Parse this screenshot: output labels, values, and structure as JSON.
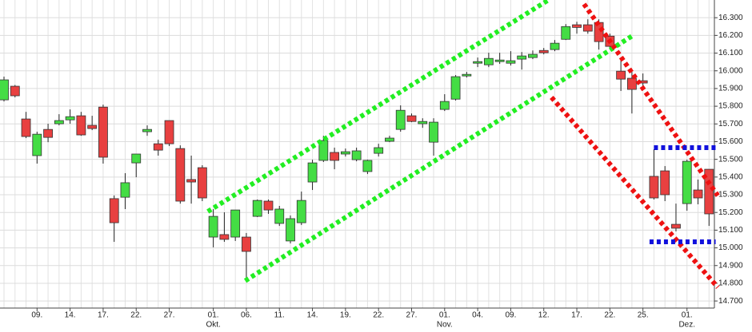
{
  "chart_data": {
    "type": "candlestick",
    "categories": [
      null,
      null,
      null,
      "09.",
      null,
      null,
      "14.",
      null,
      null,
      "17.",
      null,
      null,
      "22.",
      null,
      null,
      "27.",
      null,
      null,
      null,
      "01.",
      null,
      null,
      "06.",
      null,
      null,
      "11.",
      null,
      null,
      "14.",
      null,
      null,
      "19.",
      null,
      null,
      "22.",
      null,
      null,
      "27.",
      null,
      null,
      "01.",
      null,
      null,
      "04.",
      null,
      null,
      "09.",
      null,
      null,
      "12.",
      null,
      null,
      "17.",
      null,
      null,
      "22.",
      null,
      null,
      "25.",
      null,
      null,
      null,
      "01.",
      null,
      null
    ],
    "months": [
      null,
      null,
      null,
      null,
      null,
      null,
      null,
      null,
      null,
      null,
      null,
      null,
      null,
      null,
      null,
      null,
      null,
      null,
      null,
      "Okt.",
      null,
      null,
      null,
      null,
      null,
      null,
      null,
      null,
      null,
      null,
      null,
      null,
      null,
      null,
      null,
      null,
      null,
      null,
      null,
      null,
      "Nov.",
      null,
      null,
      null,
      null,
      null,
      null,
      null,
      null,
      null,
      null,
      null,
      null,
      null,
      null,
      null,
      null,
      null,
      null,
      null,
      null,
      null,
      "Dez.",
      null,
      null
    ],
    "open": [
      15.836,
      15.913,
      15.728,
      15.521,
      15.669,
      15.701,
      15.723,
      15.746,
      15.692,
      15.795,
      15.278,
      15.286,
      15.48,
      15.656,
      15.588,
      15.719,
      15.561,
      15.386,
      15.453,
      15.061,
      15.075,
      15.061,
      15.061,
      15.178,
      15.264,
      15.138,
      15.039,
      15.142,
      15.372,
      15.494,
      15.539,
      15.53,
      15.498,
      15.431,
      15.534,
      15.602,
      15.669,
      15.746,
      15.701,
      15.597,
      15.782,
      15.84,
      15.971,
      16.043,
      16.034,
      16.052,
      16.043,
      16.066,
      16.075,
      16.115,
      16.12,
      16.178,
      16.26,
      16.26,
      16.273,
      16.196,
      15.998,
      15.958,
      15.944,
      15.404,
      15.435,
      15.133,
      15.25,
      15.327,
      15.444
    ],
    "high": [
      15.967,
      15.92,
      15.768,
      15.656,
      15.701,
      15.755,
      15.782,
      15.768,
      15.746,
      15.809,
      15.296,
      15.422,
      15.53,
      15.692,
      15.611,
      15.719,
      15.579,
      15.521,
      15.467,
      15.219,
      15.201,
      15.214,
      15.084,
      15.273,
      15.273,
      15.237,
      15.183,
      15.318,
      15.498,
      15.633,
      15.566,
      15.561,
      15.566,
      15.498,
      15.588,
      15.633,
      15.805,
      15.759,
      15.732,
      15.732,
      15.868,
      15.976,
      15.994,
      16.075,
      16.102,
      16.102,
      16.111,
      16.106,
      16.115,
      16.129,
      16.174,
      16.264,
      16.277,
      16.291,
      16.291,
      16.21,
      16.066,
      15.994,
      15.985,
      15.557,
      15.462,
      15.25,
      15.498,
      15.386,
      15.444
    ],
    "low": [
      15.827,
      15.85,
      15.62,
      15.476,
      15.597,
      15.692,
      15.701,
      15.633,
      15.665,
      15.476,
      15.034,
      15.219,
      15.399,
      15.633,
      15.521,
      15.575,
      15.25,
      15.25,
      15.264,
      15.003,
      15.034,
      15.039,
      14.832,
      15.174,
      15.192,
      15.124,
      15.025,
      15.129,
      15.327,
      15.485,
      15.444,
      15.516,
      15.489,
      15.417,
      15.516,
      15.597,
      15.656,
      15.71,
      15.678,
      15.521,
      15.773,
      15.832,
      15.962,
      16.021,
      16.021,
      16.039,
      16.03,
      16.007,
      16.066,
      16.093,
      16.111,
      16.174,
      16.21,
      16.21,
      16.12,
      16.12,
      15.886,
      15.759,
      15.904,
      15.273,
      15.264,
      15.093,
      15.21,
      15.246,
      15.124
    ],
    "close": [
      15.949,
      15.859,
      15.629,
      15.642,
      15.624,
      15.719,
      15.741,
      15.638,
      15.674,
      15.512,
      15.142,
      15.368,
      15.53,
      15.669,
      15.552,
      15.588,
      15.264,
      15.372,
      15.282,
      15.178,
      15.048,
      15.214,
      14.98,
      15.268,
      15.214,
      15.219,
      15.165,
      15.268,
      15.48,
      15.606,
      15.494,
      15.543,
      15.548,
      15.494,
      15.566,
      15.62,
      15.777,
      15.714,
      15.714,
      15.71,
      15.827,
      15.967,
      15.98,
      16.052,
      16.07,
      16.061,
      16.057,
      16.084,
      16.093,
      16.102,
      16.156,
      16.25,
      16.245,
      16.224,
      16.165,
      16.138,
      15.953,
      15.895,
      15.931,
      15.282,
      15.3,
      15.111,
      15.489,
      15.282,
      15.192
    ],
    "up_color": "#44dd44",
    "down_color": "#e84040",
    "ylim": [
      14.66,
      16.4
    ],
    "yticks": [
      {
        "value": 14.7,
        "label": "14.700"
      },
      {
        "value": 14.8,
        "label": "14.800"
      },
      {
        "value": 14.9,
        "label": "14.900"
      },
      {
        "value": 15.0,
        "label": "15.000"
      },
      {
        "value": 15.1,
        "label": "15.100"
      },
      {
        "value": 15.2,
        "label": "15.200"
      },
      {
        "value": 15.3,
        "label": "15.300"
      },
      {
        "value": 15.4,
        "label": "15.400"
      },
      {
        "value": 15.5,
        "label": "15.500"
      },
      {
        "value": 15.6,
        "label": "15.600"
      },
      {
        "value": 15.7,
        "label": "15.700"
      },
      {
        "value": 15.8,
        "label": "15.800"
      },
      {
        "value": 15.9,
        "label": "15.900"
      },
      {
        "value": 16.0,
        "label": "16.000"
      },
      {
        "value": 16.1,
        "label": "16.100"
      },
      {
        "value": 16.2,
        "label": "16.200"
      },
      {
        "value": 16.3,
        "label": "16.300"
      }
    ],
    "grid": true,
    "trendlines": [
      {
        "color": "#22ee22",
        "x": [
          18.5,
          49.4
        ],
        "y": [
          15.205,
          16.399
        ]
      },
      {
        "color": "#22ee22",
        "x": [
          21.9,
          57.0
        ],
        "y": [
          14.814,
          16.196
        ]
      },
      {
        "color": "#ee1111",
        "x": [
          52.65,
          64.8
        ],
        "y": [
          16.377,
          15.295
        ]
      },
      {
        "color": "#ee1111",
        "x": [
          49.7,
          64.8
        ],
        "y": [
          15.85,
          14.777
        ]
      },
      {
        "color": "#1111dd",
        "x": [
          59.0,
          64.85
        ],
        "y": [
          15.566,
          15.566
        ]
      },
      {
        "color": "#1111dd",
        "x": [
          58.6,
          64.6
        ],
        "y": [
          15.034,
          15.034
        ]
      }
    ]
  }
}
